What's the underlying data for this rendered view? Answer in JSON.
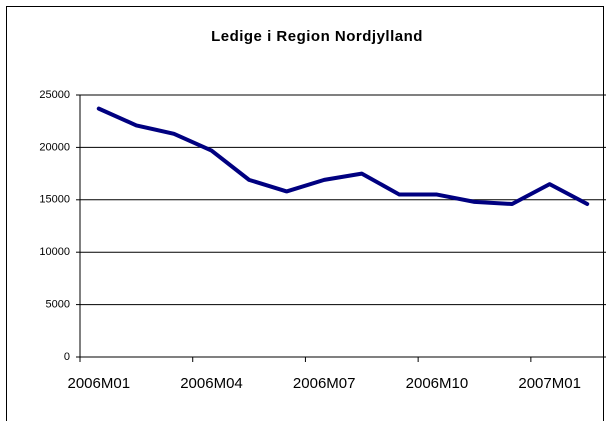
{
  "chart_data": {
    "type": "line",
    "title": "Ledige i Region Nordjylland",
    "categories": [
      "2006M01",
      null,
      null,
      "2006M04",
      null,
      null,
      "2006M07",
      null,
      null,
      "2006M10",
      null,
      null,
      "2007M01",
      null
    ],
    "values": [
      23700,
      22100,
      21300,
      19700,
      16900,
      15800,
      16900,
      17500,
      15500,
      15500,
      14800,
      14600,
      16500,
      14600
    ],
    "color": "#000080",
    "ylim": [
      0,
      25000
    ],
    "yticks": [
      0,
      5000,
      10000,
      15000,
      20000,
      25000
    ],
    "grid": true
  }
}
